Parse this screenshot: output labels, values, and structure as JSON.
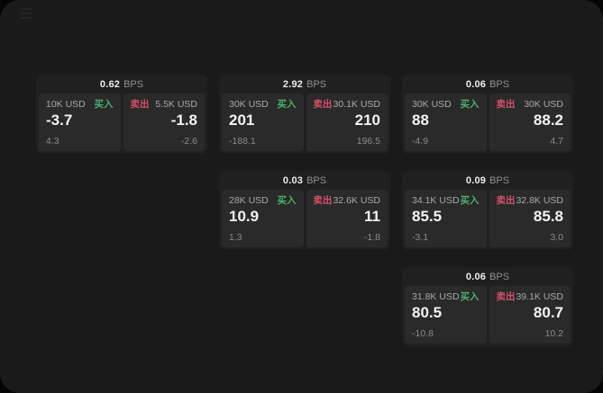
{
  "colors": {
    "window_background": "#1a1a1a",
    "card_background": "#202020",
    "panel_background": "#2a2a2a",
    "buy_green": "#4cb06b",
    "sell_red": "#d5506a"
  },
  "labels": {
    "bps_unit": "BPS",
    "buy": "买入",
    "sell": "卖出"
  },
  "cards": [
    {
      "bps": "0.62",
      "buy": {
        "size": "10K USD",
        "side": "买入",
        "price": "-3.7",
        "change": "4.3"
      },
      "sell": {
        "size": "5.5K USD",
        "side": "卖出",
        "price": "-1.8",
        "change": "-2.6"
      }
    },
    {
      "bps": "2.92",
      "buy": {
        "size": "30K USD",
        "side": "买入",
        "price": "201",
        "change": "-188.1"
      },
      "sell": {
        "size": "30.1K USD",
        "side": "卖出",
        "price": "210",
        "change": "196.5"
      }
    },
    {
      "bps": "0.06",
      "buy": {
        "size": "30K USD",
        "side": "买入",
        "price": "88",
        "change": "-4.9"
      },
      "sell": {
        "size": "30K USD",
        "side": "卖出",
        "price": "88.2",
        "change": "4.7"
      }
    },
    {
      "bps": "0.03",
      "buy": {
        "size": "28K USD",
        "side": "买入",
        "price": "10.9",
        "change": "1.3"
      },
      "sell": {
        "size": "32.6K USD",
        "side": "卖出",
        "price": "11",
        "change": "-1.8"
      }
    },
    {
      "bps": "0.09",
      "buy": {
        "size": "34.1K USD",
        "side": "买入",
        "price": "85.5",
        "change": "-3.1"
      },
      "sell": {
        "size": "32.8K USD",
        "side": "卖出",
        "price": "85.8",
        "change": "3.0"
      }
    },
    {
      "bps": "0.06",
      "buy": {
        "size": "31.8K USD",
        "side": "买入",
        "price": "80.5",
        "change": "-10.8"
      },
      "sell": {
        "size": "39.1K USD",
        "side": "卖出",
        "price": "80.7",
        "change": "10.2"
      }
    }
  ]
}
